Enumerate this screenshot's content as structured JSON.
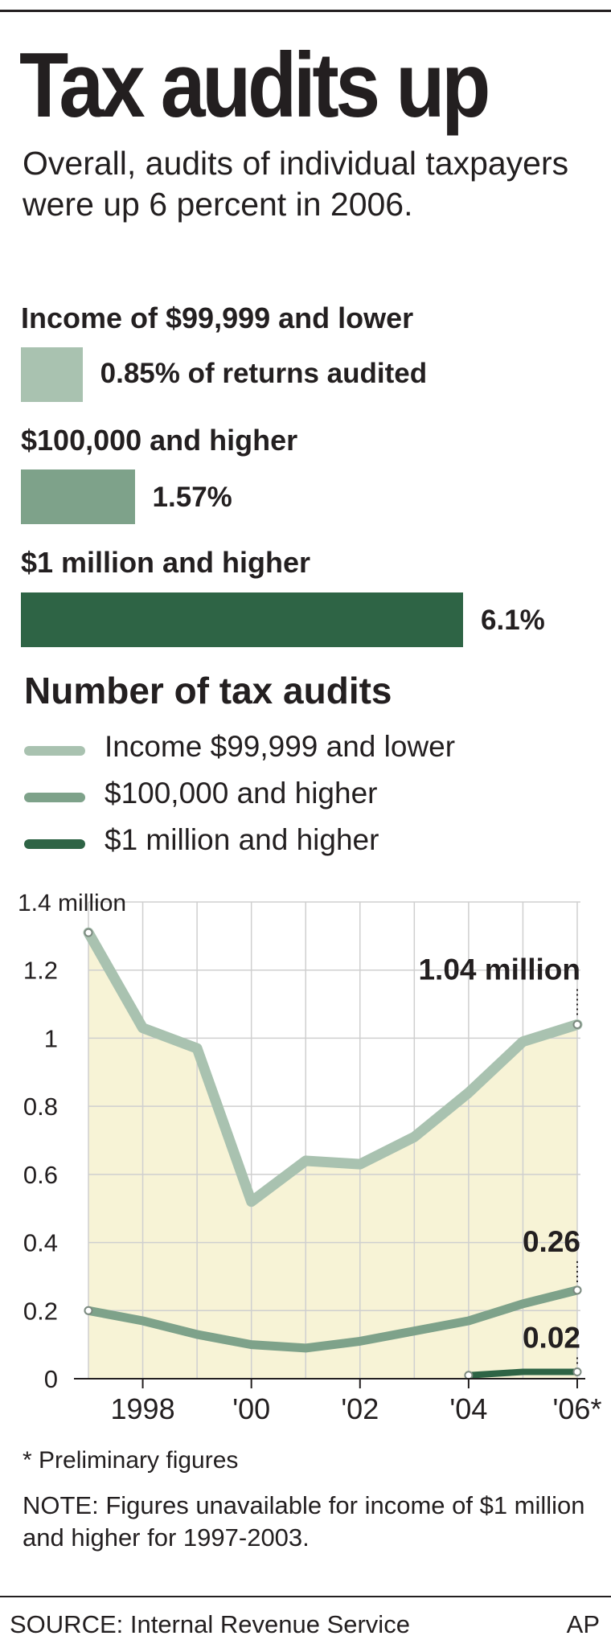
{
  "title": "Tax audits up",
  "subtitle": "Overall, audits of individual taxpayers were up 6 percent in 2006.",
  "bar_chart": {
    "items": [
      {
        "label": "Income of $99,999 and lower",
        "value_label": "0.85% of returns audited",
        "value": 0.85,
        "color": "#a9c2b0"
      },
      {
        "label": "$100,000 and higher",
        "value_label": "1.57%",
        "value": 1.57,
        "color": "#7ea28a"
      },
      {
        "label": "$1 million and higher",
        "value_label": "6.1%",
        "value": 6.1,
        "color": "#2e6445"
      }
    ]
  },
  "chart_data": {
    "type": "line",
    "title": "Number of tax audits",
    "x": [
      1997,
      1998,
      1999,
      2000,
      2001,
      2002,
      2003,
      2004,
      2005,
      2006
    ],
    "x_tick_labels": [
      {
        "x": 1998,
        "label": "1998"
      },
      {
        "x": 2000,
        "label": "'00"
      },
      {
        "x": 2002,
        "label": "'02"
      },
      {
        "x": 2004,
        "label": "'04"
      },
      {
        "x": 2006,
        "label": "'06*"
      }
    ],
    "ylim": [
      0,
      1.4
    ],
    "y_ticks": [
      {
        "value": 0,
        "label": "0"
      },
      {
        "value": 0.2,
        "label": "0.2"
      },
      {
        "value": 0.4,
        "label": "0.4"
      },
      {
        "value": 0.6,
        "label": "0.6"
      },
      {
        "value": 0.8,
        "label": "0.8"
      },
      {
        "value": 1.0,
        "label": "1"
      },
      {
        "value": 1.2,
        "label": "1.2"
      },
      {
        "value": 1.4,
        "label": "1.4 million"
      }
    ],
    "grid": true,
    "series": [
      {
        "name": "Income $99,999 and lower",
        "color": "#a9c2b0",
        "values": [
          1.31,
          1.03,
          0.97,
          0.52,
          0.64,
          0.63,
          0.71,
          0.84,
          0.99,
          1.04
        ],
        "end_label": "1.04 million"
      },
      {
        "name": "$100,000 and higher",
        "color": "#7ea28a",
        "values": [
          0.2,
          0.17,
          0.13,
          0.1,
          0.09,
          0.11,
          0.14,
          0.17,
          0.22,
          0.26
        ],
        "end_label": "0.26"
      },
      {
        "name": "$1 million and higher",
        "color": "#2e6445",
        "values": [
          null,
          null,
          null,
          null,
          null,
          null,
          null,
          0.01,
          0.02,
          0.02
        ],
        "end_label": "0.02"
      }
    ]
  },
  "footnote": "* Preliminary figures",
  "note": "NOTE: Figures unavailable for income of $1 million and higher for 1997-2003.",
  "source": "SOURCE: Internal Revenue Service",
  "credit": "AP"
}
